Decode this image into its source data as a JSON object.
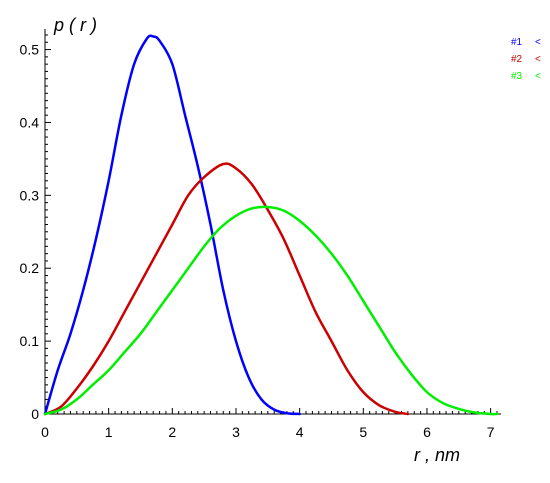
{
  "chart_data": {
    "type": "line",
    "title": "",
    "xlabel": "r , nm",
    "ylabel": "p ( r )",
    "xlim": [
      0,
      7.1
    ],
    "ylim": [
      0,
      0.52
    ],
    "x_ticks": [
      "0",
      "1",
      "2",
      "3",
      "4",
      "5",
      "6",
      "7"
    ],
    "y_ticks": [
      "0",
      "0.1",
      "0.2",
      "0.3",
      "0.4",
      "0.5"
    ],
    "grid": false,
    "legend_position": "top-right",
    "series": [
      {
        "name": "#1",
        "legend_marker": "<",
        "color": "#0000ff",
        "x": [
          0,
          0.2,
          0.4,
          0.6,
          0.8,
          1.0,
          1.2,
          1.4,
          1.6,
          1.7,
          1.8,
          2.0,
          2.2,
          2.4,
          2.6,
          2.8,
          3.0,
          3.2,
          3.4,
          3.6,
          3.8,
          4.0
        ],
        "y": [
          0,
          0.06,
          0.11,
          0.17,
          0.24,
          0.32,
          0.41,
          0.48,
          0.515,
          0.518,
          0.512,
          0.48,
          0.41,
          0.34,
          0.26,
          0.17,
          0.1,
          0.05,
          0.02,
          0.006,
          0.001,
          0
        ]
      },
      {
        "name": "#2",
        "legend_marker": "<",
        "color": "#cc0000",
        "x": [
          0,
          0.25,
          0.5,
          0.75,
          1.0,
          1.25,
          1.5,
          1.75,
          2.0,
          2.25,
          2.5,
          2.8,
          3.0,
          3.25,
          3.5,
          3.75,
          4.0,
          4.25,
          4.5,
          4.75,
          5.0,
          5.25,
          5.5,
          5.7
        ],
        "y": [
          0,
          0.01,
          0.035,
          0.065,
          0.1,
          0.14,
          0.18,
          0.22,
          0.26,
          0.3,
          0.325,
          0.343,
          0.337,
          0.315,
          0.28,
          0.24,
          0.19,
          0.14,
          0.1,
          0.06,
          0.03,
          0.012,
          0.003,
          0
        ]
      },
      {
        "name": "#3",
        "legend_marker": "<",
        "color": "#00ee00",
        "x": [
          0,
          0.25,
          0.5,
          0.75,
          1.0,
          1.25,
          1.5,
          1.75,
          2.0,
          2.25,
          2.5,
          2.75,
          3.0,
          3.25,
          3.5,
          3.75,
          4.0,
          4.25,
          4.5,
          4.75,
          5.0,
          5.25,
          5.5,
          5.75,
          6.0,
          6.25,
          6.5,
          6.75,
          7.0,
          7.1
        ],
        "y": [
          0,
          0.006,
          0.02,
          0.04,
          0.06,
          0.085,
          0.11,
          0.14,
          0.17,
          0.2,
          0.23,
          0.255,
          0.272,
          0.282,
          0.284,
          0.279,
          0.265,
          0.245,
          0.22,
          0.19,
          0.155,
          0.12,
          0.085,
          0.055,
          0.03,
          0.015,
          0.007,
          0.002,
          0.0,
          0
        ]
      }
    ]
  }
}
